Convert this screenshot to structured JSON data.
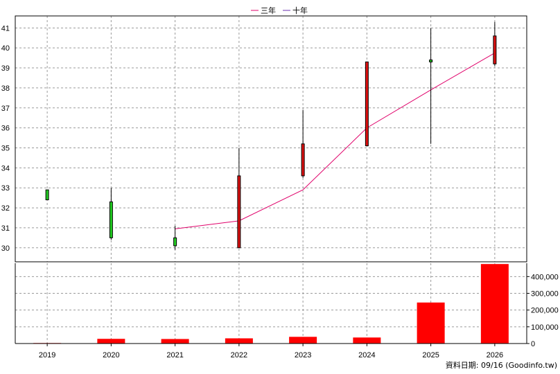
{
  "chart_data": [
    {
      "type": "candlestick",
      "legend": {
        "placement": "top-center",
        "items": [
          {
            "label": "三年",
            "color": "#e0006a"
          },
          {
            "label": "十年",
            "color": "#6a2fb0"
          }
        ]
      },
      "categories": [
        "2019",
        "2020",
        "2021",
        "2022",
        "2023",
        "2024",
        "2025",
        "2026"
      ],
      "ylim": [
        29.3,
        41.6
      ],
      "yticks": [
        "30",
        "31",
        "32",
        "33",
        "34",
        "35",
        "36",
        "37",
        "38",
        "39",
        "40",
        "41"
      ],
      "grid": true,
      "candles": [
        {
          "x": "2019",
          "open": 32.4,
          "close": 32.9,
          "high": 32.9,
          "low": 32.4,
          "color": "#22cc22"
        },
        {
          "x": "2020",
          "open": 32.3,
          "close": 30.5,
          "high": 33.0,
          "low": 30.4,
          "color": "#22cc22"
        },
        {
          "x": "2021",
          "open": 30.5,
          "close": 30.1,
          "high": 31.1,
          "low": 29.9,
          "color": "#22cc22"
        },
        {
          "x": "2022",
          "open": 30.0,
          "close": 33.6,
          "high": 35.0,
          "low": 30.0,
          "color": "#dd1111"
        },
        {
          "x": "2023",
          "open": 33.6,
          "close": 35.2,
          "high": 36.9,
          "low": 33.5,
          "color": "#dd1111"
        },
        {
          "x": "2024",
          "open": 35.1,
          "close": 39.3,
          "high": 39.3,
          "low": 35.1,
          "color": "#dd1111"
        },
        {
          "x": "2025",
          "open": 39.3,
          "close": 39.4,
          "high": 41.0,
          "low": 35.2,
          "color": "#22cc22"
        },
        {
          "x": "2026",
          "open": 39.2,
          "close": 40.6,
          "high": 41.3,
          "low": 39.1,
          "color": "#dd1111"
        }
      ],
      "series": [
        {
          "name": "三年",
          "color": "#e0006a",
          "x": [
            "2021",
            "2022",
            "2023",
            "2024",
            "2025",
            "2026"
          ],
          "values": [
            30.95,
            31.35,
            32.9,
            36.0,
            37.9,
            39.75
          ]
        }
      ]
    },
    {
      "type": "bar",
      "categories": [
        "2019",
        "2020",
        "2021",
        "2022",
        "2023",
        "2024",
        "2025",
        "2026"
      ],
      "values": [
        3000,
        28000,
        27000,
        31000,
        40000,
        36000,
        245000,
        475000
      ],
      "ylim": [
        0,
        480000
      ],
      "yticks": [
        "0",
        "100,000",
        "200,000",
        "300,000",
        "400,000"
      ],
      "color": "#ff0000",
      "grid": true
    }
  ],
  "footer": {
    "source": "資料日期: 09/16  (Goodinfo.tw)"
  }
}
